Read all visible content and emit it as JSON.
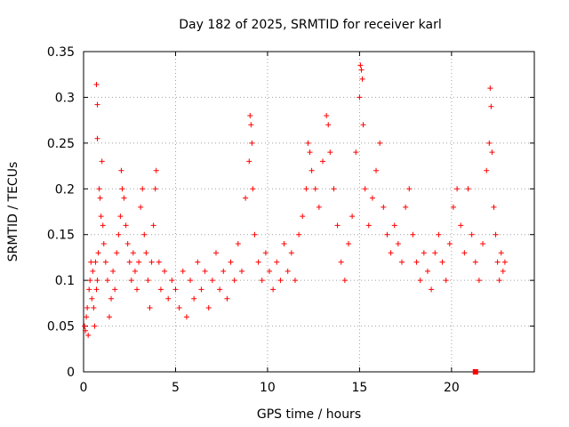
{
  "chart_data": {
    "type": "scatter",
    "title": "Day 182 of 2025, SRMTID for receiver karl",
    "xlabel": "GPS time / hours",
    "ylabel": "SRMTID / TECUs",
    "xlim": [
      0,
      24.5
    ],
    "ylim": [
      0,
      0.35
    ],
    "x_ticks": [
      0,
      5,
      10,
      15,
      20
    ],
    "y_ticks": [
      0,
      0.05,
      0.1,
      0.15,
      0.2,
      0.25,
      0.3,
      0.35
    ],
    "x_tick_labels": [
      "0",
      "5",
      "10",
      "15",
      "20"
    ],
    "y_tick_labels": [
      "0",
      "0.05",
      "0.1",
      "0.15",
      "0.2",
      "0.25",
      "0.3",
      "0.35"
    ],
    "grid": true,
    "marker": "plus",
    "color": "#ff0000",
    "series": [
      {
        "points": [
          [
            0.05,
            0.05
          ],
          [
            0.1,
            0.045
          ],
          [
            0.15,
            0.06
          ],
          [
            0.2,
            0.07
          ],
          [
            0.25,
            0.04
          ],
          [
            0.3,
            0.09
          ],
          [
            0.35,
            0.1
          ],
          [
            0.4,
            0.12
          ],
          [
            0.45,
            0.08
          ],
          [
            0.5,
            0.11
          ],
          [
            0.55,
            0.07
          ],
          [
            0.6,
            0.05
          ],
          [
            0.65,
            0.12
          ],
          [
            0.7,
            0.09
          ],
          [
            0.75,
            0.1
          ],
          [
            0.8,
            0.13
          ],
          [
            0.7,
            0.314
          ],
          [
            0.75,
            0.292
          ],
          [
            0.75,
            0.255
          ],
          [
            0.85,
            0.2
          ],
          [
            0.9,
            0.19
          ],
          [
            0.95,
            0.17
          ],
          [
            1.0,
            0.23
          ],
          [
            1.05,
            0.16
          ],
          [
            1.1,
            0.14
          ],
          [
            1.2,
            0.12
          ],
          [
            1.3,
            0.1
          ],
          [
            1.4,
            0.06
          ],
          [
            1.5,
            0.08
          ],
          [
            1.6,
            0.11
          ],
          [
            1.7,
            0.09
          ],
          [
            1.8,
            0.13
          ],
          [
            1.9,
            0.15
          ],
          [
            2.0,
            0.17
          ],
          [
            2.05,
            0.22
          ],
          [
            2.1,
            0.2
          ],
          [
            2.2,
            0.19
          ],
          [
            2.3,
            0.16
          ],
          [
            2.4,
            0.14
          ],
          [
            2.5,
            0.12
          ],
          [
            2.6,
            0.1
          ],
          [
            2.7,
            0.13
          ],
          [
            2.8,
            0.11
          ],
          [
            2.9,
            0.09
          ],
          [
            3.0,
            0.12
          ],
          [
            3.1,
            0.18
          ],
          [
            3.2,
            0.2
          ],
          [
            3.3,
            0.15
          ],
          [
            3.4,
            0.13
          ],
          [
            3.5,
            0.1
          ],
          [
            3.6,
            0.07
          ],
          [
            3.7,
            0.12
          ],
          [
            3.8,
            0.16
          ],
          [
            3.9,
            0.2
          ],
          [
            3.95,
            0.22
          ],
          [
            4.1,
            0.12
          ],
          [
            4.2,
            0.09
          ],
          [
            4.4,
            0.11
          ],
          [
            4.6,
            0.08
          ],
          [
            4.8,
            0.1
          ],
          [
            5.0,
            0.09
          ],
          [
            5.2,
            0.07
          ],
          [
            5.4,
            0.11
          ],
          [
            5.6,
            0.06
          ],
          [
            5.8,
            0.1
          ],
          [
            6.0,
            0.08
          ],
          [
            6.2,
            0.12
          ],
          [
            6.4,
            0.09
          ],
          [
            6.6,
            0.11
          ],
          [
            6.8,
            0.07
          ],
          [
            7.0,
            0.1
          ],
          [
            7.2,
            0.13
          ],
          [
            7.4,
            0.09
          ],
          [
            7.6,
            0.11
          ],
          [
            7.8,
            0.08
          ],
          [
            8.0,
            0.12
          ],
          [
            8.2,
            0.1
          ],
          [
            8.4,
            0.14
          ],
          [
            8.6,
            0.11
          ],
          [
            8.8,
            0.19
          ],
          [
            9.0,
            0.23
          ],
          [
            9.05,
            0.28
          ],
          [
            9.1,
            0.27
          ],
          [
            9.15,
            0.25
          ],
          [
            9.2,
            0.2
          ],
          [
            9.3,
            0.15
          ],
          [
            9.5,
            0.12
          ],
          [
            9.7,
            0.1
          ],
          [
            9.9,
            0.13
          ],
          [
            10.1,
            0.11
          ],
          [
            10.3,
            0.09
          ],
          [
            10.5,
            0.12
          ],
          [
            10.7,
            0.1
          ],
          [
            10.9,
            0.14
          ],
          [
            11.1,
            0.11
          ],
          [
            11.3,
            0.13
          ],
          [
            11.5,
            0.1
          ],
          [
            11.7,
            0.15
          ],
          [
            11.9,
            0.17
          ],
          [
            12.1,
            0.2
          ],
          [
            12.2,
            0.25
          ],
          [
            12.3,
            0.24
          ],
          [
            12.4,
            0.22
          ],
          [
            12.6,
            0.2
          ],
          [
            12.8,
            0.18
          ],
          [
            13.0,
            0.23
          ],
          [
            13.2,
            0.28
          ],
          [
            13.3,
            0.27
          ],
          [
            13.4,
            0.24
          ],
          [
            13.6,
            0.2
          ],
          [
            13.8,
            0.16
          ],
          [
            14.0,
            0.12
          ],
          [
            14.2,
            0.1
          ],
          [
            14.4,
            0.14
          ],
          [
            14.6,
            0.17
          ],
          [
            14.8,
            0.24
          ],
          [
            15.0,
            0.3
          ],
          [
            15.05,
            0.335
          ],
          [
            15.1,
            0.33
          ],
          [
            15.15,
            0.32
          ],
          [
            15.2,
            0.27
          ],
          [
            15.3,
            0.2
          ],
          [
            15.5,
            0.16
          ],
          [
            15.7,
            0.19
          ],
          [
            15.9,
            0.22
          ],
          [
            16.1,
            0.25
          ],
          [
            16.3,
            0.18
          ],
          [
            16.5,
            0.15
          ],
          [
            16.7,
            0.13
          ],
          [
            16.9,
            0.16
          ],
          [
            17.1,
            0.14
          ],
          [
            17.3,
            0.12
          ],
          [
            17.5,
            0.18
          ],
          [
            17.7,
            0.2
          ],
          [
            17.9,
            0.15
          ],
          [
            18.1,
            0.12
          ],
          [
            18.3,
            0.1
          ],
          [
            18.5,
            0.13
          ],
          [
            18.7,
            0.11
          ],
          [
            18.9,
            0.09
          ],
          [
            19.1,
            0.13
          ],
          [
            19.3,
            0.15
          ],
          [
            19.5,
            0.12
          ],
          [
            19.7,
            0.1
          ],
          [
            19.9,
            0.14
          ],
          [
            20.1,
            0.18
          ],
          [
            20.3,
            0.2
          ],
          [
            20.5,
            0.16
          ],
          [
            20.7,
            0.13
          ],
          [
            20.9,
            0.2
          ],
          [
            21.1,
            0.15
          ],
          [
            21.3,
            0.12
          ],
          [
            21.5,
            0.1
          ],
          [
            21.7,
            0.14
          ],
          [
            21.9,
            0.22
          ],
          [
            22.05,
            0.25
          ],
          [
            22.1,
            0.31
          ],
          [
            22.15,
            0.29
          ],
          [
            22.2,
            0.24
          ],
          [
            22.3,
            0.18
          ],
          [
            22.4,
            0.15
          ],
          [
            22.5,
            0.12
          ],
          [
            22.6,
            0.1
          ],
          [
            22.7,
            0.13
          ],
          [
            22.8,
            0.11
          ],
          [
            22.9,
            0.12
          ]
        ]
      }
    ],
    "extra_marks": [
      {
        "x": 21.3,
        "y": 0.0,
        "shape": "square"
      }
    ]
  }
}
